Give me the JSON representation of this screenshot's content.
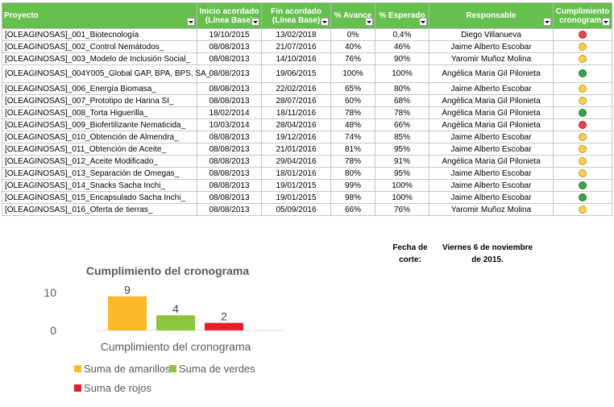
{
  "table": {
    "headers": [
      "Proyecto",
      "Inicio acordado (Línea Base)",
      "Fin acordado (Línea Base)",
      "% Avance",
      "% Esperado",
      "Responsable",
      "Cumplimiento cronograma"
    ],
    "rows": [
      {
        "proyecto": "[OLEAGINOSAS]_001_Biotecnología",
        "inicio": "19/10/2015",
        "fin": "13/02/2018",
        "avance": "0%",
        "esperado": "0,4%",
        "responsable": "Diego Villanueva",
        "status": "red"
      },
      {
        "proyecto": "[OLEAGINOSAS]_002_Control Nemátodos_",
        "inicio": "08/08/2013",
        "fin": "21/07/2016",
        "avance": "40%",
        "esperado": "46%",
        "responsable": "Jaime Alberto Escobar",
        "status": "yellow"
      },
      {
        "proyecto": "[OLEAGINOSAS]_003_Modelo de Inclusión Social_",
        "inicio": "08/08/2013",
        "fin": "14/10/2016",
        "avance": "76%",
        "esperado": "90%",
        "responsable": "Yaromir Muñoz Molina",
        "status": "yellow"
      },
      {
        "proyecto": "[OLEAGINOSAS]_004Y005_Global GAP, BPA, BPS, SA_",
        "inicio": "08/08/2013",
        "fin": "19/06/2015",
        "avance": "100%",
        "esperado": "100%",
        "responsable": "Angélica Maria Gil Pilonieta",
        "status": "green"
      },
      {
        "proyecto": "[OLEAGINOSAS]_006_Energía Biomasa_",
        "inicio": "08/08/2013",
        "fin": "22/02/2016",
        "avance": "65%",
        "esperado": "80%",
        "responsable": "Jaime Alberto Escobar",
        "status": "yellow"
      },
      {
        "proyecto": "[OLEAGINOSAS]_007_Prototipo de Harina SI_",
        "inicio": "08/08/2013",
        "fin": "28/07/2016",
        "avance": "60%",
        "esperado": "68%",
        "responsable": "Angélica Maria Gil Pilonieta",
        "status": "yellow"
      },
      {
        "proyecto": "[OLEAGINOSAS]_008_Torta Higuerilla_",
        "inicio": "18/02/2014",
        "fin": "18/11/2016",
        "avance": "78%",
        "esperado": "78%",
        "responsable": "Angélica Maria Gil Pilonieta",
        "status": "green"
      },
      {
        "proyecto": "[OLEAGINOSAS]_009_Biofertilizante Nematicida_",
        "inicio": "10/03/2014",
        "fin": "28/04/2016",
        "avance": "48%",
        "esperado": "66%",
        "responsable": "Angélica Maria Gil Pilonieta",
        "status": "red"
      },
      {
        "proyecto": "[OLEAGINOSAS]_010_Obtención de Almendra_",
        "inicio": "08/08/2013",
        "fin": "19/12/2016",
        "avance": "74%",
        "esperado": "85%",
        "responsable": "Jaime Alberto Escobar",
        "status": "yellow"
      },
      {
        "proyecto": "[OLEAGINOSAS]_011_Obtención de Aceite_",
        "inicio": "08/08/2013",
        "fin": "21/01/2016",
        "avance": "81%",
        "esperado": "95%",
        "responsable": "Jaime Alberto Escobar",
        "status": "yellow"
      },
      {
        "proyecto": "[OLEAGINOSAS]_012_Aceite Modificado_",
        "inicio": "08/08/2013",
        "fin": "29/04/2016",
        "avance": "78%",
        "esperado": "91%",
        "responsable": "Angélica Maria Gil Pilonieta",
        "status": "yellow"
      },
      {
        "proyecto": "[OLEAGINOSAS]_013_Separación de Omegas_",
        "inicio": "08/08/2013",
        "fin": "18/01/2016",
        "avance": "80%",
        "esperado": "95%",
        "responsable": "Jaime Alberto Escobar",
        "status": "yellow"
      },
      {
        "proyecto": "[OLEAGINOSAS]_014_Snacks Sacha Inchi_",
        "inicio": "08/08/2013",
        "fin": "19/01/2015",
        "avance": "99%",
        "esperado": "100%",
        "responsable": "Jaime Alberto Escobar",
        "status": "green"
      },
      {
        "proyecto": "[OLEAGINOSAS]_015_Encapsulado Sacha Inchi_",
        "inicio": "08/08/2013",
        "fin": "19/01/2015",
        "avance": "98%",
        "esperado": "100%",
        "responsable": "Jaime Alberto Escobar",
        "status": "green"
      },
      {
        "proyecto": "[OLEAGINOSAS]_016_Oferta de tierras_",
        "inicio": "08/08/2013",
        "fin": "05/09/2016",
        "avance": "66%",
        "esperado": "76%",
        "responsable": "Yaromir Muñoz Molina",
        "status": "yellow"
      }
    ]
  },
  "status_colors": {
    "red": "#e8454c",
    "yellow": "#f7d04f",
    "green": "#3aa14a"
  },
  "fecha_corte": {
    "label": "Fecha de corte:",
    "value": "Viernes 6 de noviembre de 2015."
  },
  "chart_data": {
    "type": "bar",
    "title": "Cumplimiento del cronograma",
    "categories": [
      "Cumplimiento del cronograma"
    ],
    "series": [
      {
        "name": "Suma de amarillos",
        "values": [
          9
        ],
        "color": "#f9b929"
      },
      {
        "name": "Suma de verdes",
        "values": [
          4
        ],
        "color": "#8dc63f"
      },
      {
        "name": "Suma de rojos",
        "values": [
          2
        ],
        "color": "#e2202e"
      }
    ],
    "y_ticks": [
      0,
      10
    ],
    "ylim": [
      0,
      10
    ],
    "legend": "bottom",
    "grid": false,
    "data_labels": true
  }
}
